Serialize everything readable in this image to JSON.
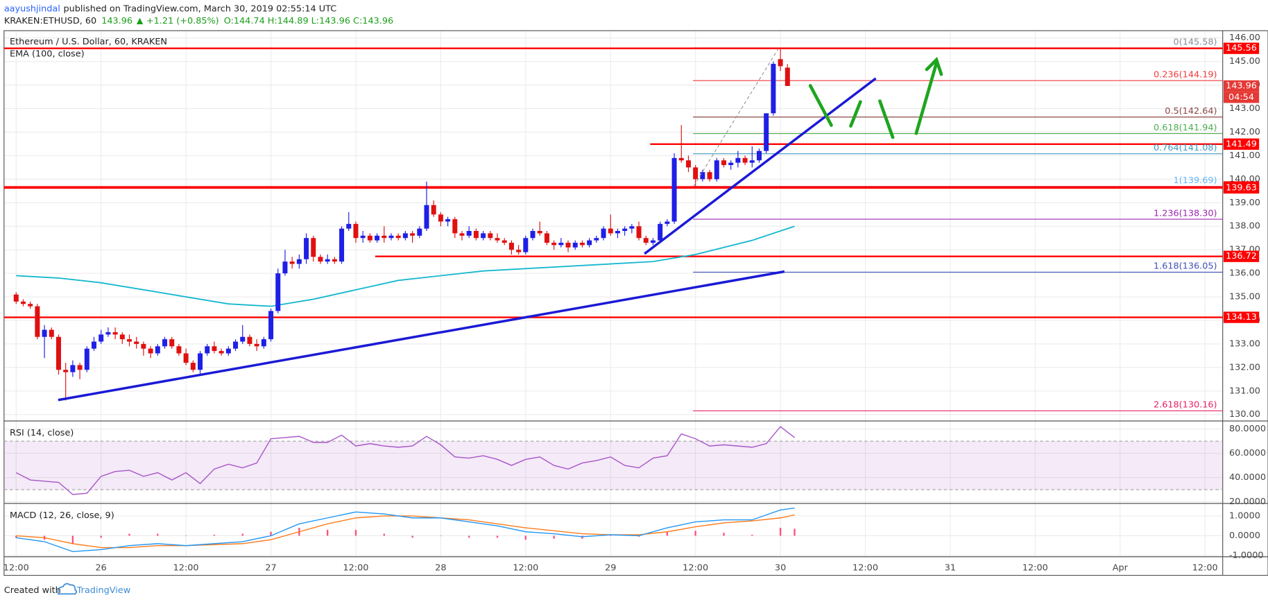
{
  "chart_data": {
    "type": "candlestick",
    "header": {
      "user": "aayushjindal",
      "published": "published on TradingView.com, March 30, 2019 02:55:14 UTC",
      "symbol": "KRAKEN:ETHUSD, 60",
      "last": 143.96,
      "change": "+1.21 (+0.85%)",
      "ohlc": "O:144.74 H:144.89 L:143.96 C:143.96"
    },
    "title": "Ethereum / U.S. Dollar, 60, KRAKEN",
    "ema_label": "EMA (100, close)",
    "xlim": [
      -1.71,
      170.5
    ],
    "xticks": [
      {
        "value": 0,
        "label": "12:00"
      },
      {
        "value": 12,
        "label": "26"
      },
      {
        "value": 24,
        "label": "12:00"
      },
      {
        "value": 36,
        "label": "27"
      },
      {
        "value": 48,
        "label": "12:00"
      },
      {
        "value": 60,
        "label": "28"
      },
      {
        "value": 72,
        "label": "12:00"
      },
      {
        "value": 84,
        "label": "29"
      },
      {
        "value": 96,
        "label": "12:00"
      },
      {
        "value": 108,
        "label": "30"
      },
      {
        "value": 120,
        "label": "12:00"
      },
      {
        "value": 132,
        "label": "31"
      },
      {
        "value": 144,
        "label": "12:00"
      },
      {
        "value": 156,
        "label": "Apr"
      },
      {
        "value": 168,
        "label": "12:00"
      }
    ],
    "ylim": [
      129.76,
      146.24
    ],
    "yticks": [
      {
        "value": 130,
        "label": "130.00"
      },
      {
        "value": 131,
        "label": "131.00"
      },
      {
        "value": 132,
        "label": "132.00"
      },
      {
        "value": 133,
        "label": "133.00"
      },
      {
        "value": 134,
        "label": "134.00"
      },
      {
        "value": 135,
        "label": "135.00"
      },
      {
        "value": 136,
        "label": "136.00"
      },
      {
        "value": 137,
        "label": "137.00"
      },
      {
        "value": 138,
        "label": "138.00"
      },
      {
        "value": 139,
        "label": "139.00"
      },
      {
        "value": 140,
        "label": "140.00"
      },
      {
        "value": 141,
        "label": "141.00"
      },
      {
        "value": 142,
        "label": "142.00"
      },
      {
        "value": 143,
        "label": "143.00"
      },
      {
        "value": 144,
        "label": "144.00"
      },
      {
        "value": 145,
        "label": "145.00"
      },
      {
        "value": 146,
        "label": "146.00"
      }
    ],
    "grid": true,
    "up_color": "#1f1fe6",
    "down_color": "#e01010",
    "candles": {
      "x": [
        0,
        1,
        2,
        3,
        4,
        5,
        6,
        7,
        8,
        9,
        10,
        11,
        12,
        13,
        14,
        15,
        16,
        17,
        18,
        19,
        20,
        21,
        22,
        23,
        24,
        25,
        26,
        27,
        28,
        29,
        30,
        31,
        32,
        33,
        34,
        35,
        36,
        37,
        38,
        39,
        40,
        41,
        42,
        43,
        44,
        45,
        46,
        47,
        48,
        49,
        50,
        51,
        52,
        53,
        54,
        55,
        56,
        57,
        58,
        59,
        60,
        61,
        62,
        63,
        64,
        65,
        66,
        67,
        68,
        69,
        70,
        71,
        72,
        73,
        74,
        75,
        76,
        77,
        78,
        79,
        80,
        81,
        82,
        83,
        84,
        85,
        86,
        87,
        88,
        89,
        90,
        91,
        92,
        93,
        94,
        95,
        96,
        97,
        98,
        99,
        100,
        101,
        102,
        103,
        104,
        105,
        106,
        107,
        108,
        109
      ],
      "ohlc": [
        [
          135.1,
          135.2,
          134.7,
          134.8
        ],
        [
          134.8,
          134.9,
          134.6,
          134.7
        ],
        [
          134.7,
          134.8,
          134.5,
          134.6
        ],
        [
          134.6,
          134.7,
          133.2,
          133.3
        ],
        [
          133.3,
          133.8,
          132.4,
          133.6
        ],
        [
          133.6,
          133.7,
          133.2,
          133.3
        ],
        [
          133.3,
          133.4,
          131.7,
          131.9
        ],
        [
          131.9,
          132.2,
          130.6,
          131.8
        ],
        [
          131.8,
          132.3,
          131.6,
          132.1
        ],
        [
          132.1,
          132.2,
          131.5,
          131.9
        ],
        [
          131.9,
          132.9,
          131.8,
          132.8
        ],
        [
          132.8,
          133.3,
          132.7,
          133.1
        ],
        [
          133.1,
          133.6,
          133.0,
          133.4
        ],
        [
          133.4,
          133.7,
          133.3,
          133.5
        ],
        [
          133.5,
          133.7,
          133.2,
          133.4
        ],
        [
          133.4,
          133.5,
          133.0,
          133.2
        ],
        [
          133.2,
          133.4,
          132.9,
          133.1
        ],
        [
          133.1,
          133.3,
          132.8,
          133.0
        ],
        [
          133.0,
          133.1,
          132.5,
          132.8
        ],
        [
          132.8,
          132.9,
          132.4,
          132.6
        ],
        [
          132.6,
          133.0,
          132.5,
          132.9
        ],
        [
          132.9,
          133.3,
          132.8,
          133.2
        ],
        [
          133.2,
          133.3,
          132.8,
          132.9
        ],
        [
          132.9,
          133.0,
          132.5,
          132.6
        ],
        [
          132.6,
          132.8,
          132.1,
          132.2
        ],
        [
          132.2,
          132.3,
          131.8,
          131.9
        ],
        [
          131.9,
          132.7,
          131.7,
          132.6
        ],
        [
          132.6,
          133.0,
          132.5,
          132.9
        ],
        [
          132.9,
          133.1,
          132.6,
          132.7
        ],
        [
          132.7,
          132.8,
          132.5,
          132.6
        ],
        [
          132.6,
          132.9,
          132.5,
          132.8
        ],
        [
          132.8,
          133.2,
          132.7,
          133.1
        ],
        [
          133.1,
          133.8,
          133.0,
          133.3
        ],
        [
          133.3,
          133.4,
          132.9,
          133.0
        ],
        [
          133.0,
          133.2,
          132.7,
          132.9
        ],
        [
          132.9,
          133.3,
          132.8,
          133.2
        ],
        [
          133.2,
          134.5,
          133.1,
          134.4
        ],
        [
          134.4,
          136.2,
          134.3,
          136.0
        ],
        [
          136.0,
          137.0,
          135.9,
          136.5
        ],
        [
          136.5,
          136.7,
          136.2,
          136.4
        ],
        [
          136.4,
          136.8,
          136.2,
          136.6
        ],
        [
          136.6,
          137.7,
          136.4,
          137.5
        ],
        [
          137.5,
          137.6,
          136.5,
          136.7
        ],
        [
          136.7,
          136.8,
          136.4,
          136.5
        ],
        [
          136.5,
          136.8,
          136.4,
          136.6
        ],
        [
          136.6,
          136.7,
          136.4,
          136.5
        ],
        [
          136.5,
          138.0,
          136.4,
          137.9
        ],
        [
          137.9,
          138.6,
          137.8,
          138.1
        ],
        [
          138.1,
          138.2,
          137.3,
          137.5
        ],
        [
          137.5,
          137.8,
          137.3,
          137.6
        ],
        [
          137.6,
          137.7,
          137.3,
          137.4
        ],
        [
          137.4,
          137.7,
          137.3,
          137.6
        ],
        [
          137.6,
          138.0,
          137.3,
          137.5
        ],
        [
          137.5,
          137.7,
          137.4,
          137.6
        ],
        [
          137.6,
          137.7,
          137.4,
          137.5
        ],
        [
          137.5,
          137.8,
          137.4,
          137.7
        ],
        [
          137.7,
          137.8,
          137.3,
          137.6
        ],
        [
          137.6,
          138.0,
          137.5,
          137.9
        ],
        [
          137.9,
          139.9,
          137.8,
          138.9
        ],
        [
          138.9,
          139.1,
          138.4,
          138.5
        ],
        [
          138.5,
          138.6,
          138.0,
          138.2
        ],
        [
          138.2,
          138.4,
          138.0,
          138.3
        ],
        [
          138.3,
          138.4,
          137.5,
          137.7
        ],
        [
          137.7,
          137.8,
          137.4,
          137.6
        ],
        [
          137.6,
          138.0,
          137.5,
          137.8
        ],
        [
          137.8,
          137.9,
          137.4,
          137.5
        ],
        [
          137.5,
          137.8,
          137.4,
          137.7
        ],
        [
          137.7,
          137.8,
          137.4,
          137.5
        ],
        [
          137.5,
          137.7,
          137.3,
          137.4
        ],
        [
          137.4,
          137.5,
          137.2,
          137.3
        ],
        [
          137.3,
          137.4,
          136.8,
          137.0
        ],
        [
          137.0,
          137.2,
          136.8,
          136.9
        ],
        [
          136.9,
          137.6,
          136.8,
          137.5
        ],
        [
          137.5,
          137.9,
          137.4,
          137.8
        ],
        [
          137.8,
          138.2,
          137.6,
          137.7
        ],
        [
          137.7,
          137.8,
          137.2,
          137.3
        ],
        [
          137.3,
          137.4,
          137.0,
          137.2
        ],
        [
          137.2,
          137.5,
          137.1,
          137.3
        ],
        [
          137.3,
          137.4,
          136.9,
          137.1
        ],
        [
          137.1,
          137.4,
          137.0,
          137.3
        ],
        [
          137.3,
          137.4,
          137.1,
          137.2
        ],
        [
          137.2,
          137.5,
          137.1,
          137.4
        ],
        [
          137.4,
          137.6,
          137.3,
          137.5
        ],
        [
          137.5,
          138.0,
          137.4,
          137.9
        ],
        [
          137.9,
          138.5,
          137.6,
          137.7
        ],
        [
          137.7,
          137.9,
          137.5,
          137.8
        ],
        [
          137.8,
          138.0,
          137.6,
          137.9
        ],
        [
          137.9,
          138.1,
          137.7,
          138.0
        ],
        [
          138.0,
          138.2,
          137.4,
          137.5
        ],
        [
          137.5,
          137.6,
          137.2,
          137.3
        ],
        [
          137.3,
          137.5,
          137.2,
          137.4
        ],
        [
          137.4,
          138.2,
          137.3,
          138.1
        ],
        [
          138.1,
          138.3,
          138.0,
          138.2
        ],
        [
          138.2,
          141.1,
          138.1,
          140.9
        ],
        [
          140.9,
          142.3,
          140.7,
          140.8
        ],
        [
          140.8,
          141.0,
          140.3,
          140.5
        ],
        [
          140.5,
          140.6,
          139.7,
          140.0
        ],
        [
          140.0,
          140.4,
          139.9,
          140.3
        ],
        [
          140.3,
          140.4,
          139.9,
          140.0
        ],
        [
          140.0,
          140.9,
          139.9,
          140.8
        ],
        [
          140.8,
          140.9,
          140.5,
          140.6
        ],
        [
          140.6,
          140.8,
          140.4,
          140.7
        ],
        [
          140.7,
          141.2,
          140.5,
          140.9
        ],
        [
          140.9,
          141.0,
          140.6,
          140.7
        ],
        [
          140.7,
          141.4,
          140.5,
          140.8
        ],
        [
          140.8,
          141.3,
          140.7,
          141.2
        ],
        [
          141.2,
          142.8,
          141.1,
          142.8
        ],
        [
          142.8,
          145.0,
          142.7,
          144.9
        ],
        [
          145.1,
          145.58,
          144.6,
          144.8
        ],
        [
          144.74,
          144.89,
          143.96,
          143.96
        ]
      ]
    },
    "ema": {
      "color": "#17b8cf",
      "x": [
        0,
        6,
        12,
        18,
        24,
        30,
        36,
        42,
        48,
        54,
        60,
        66,
        72,
        78,
        84,
        90,
        96,
        100,
        104,
        108,
        110
      ],
      "values": [
        135.9,
        135.8,
        135.6,
        135.3,
        135.0,
        134.7,
        134.6,
        134.9,
        135.3,
        135.7,
        135.9,
        136.1,
        136.2,
        136.3,
        136.4,
        136.5,
        136.8,
        137.1,
        137.4,
        137.8,
        138.0
      ]
    },
    "levels": [
      145.56,
      141.49,
      139.67,
      139.63,
      136.72,
      134.13
    ],
    "level_color": "#ff0000",
    "current_price": 143.96,
    "countdown": "04:54",
    "fib": [
      {
        "label": "0(145.58)",
        "value": 145.58,
        "color": "#8a8d96"
      },
      {
        "label": "0.236(144.19)",
        "value": 144.19,
        "color": "#f23a3a"
      },
      {
        "label": "0.5(142.64)",
        "value": 142.64,
        "color": "#8c4848"
      },
      {
        "label": "0.618(141.94)",
        "value": 141.94,
        "color": "#4caf50"
      },
      {
        "label": "0.764(141.08)",
        "value": 141.08,
        "color": "#3f9bbf"
      },
      {
        "label": "1(139.69)",
        "value": 139.69,
        "color": "#64b5f6"
      },
      {
        "label": "1.236(138.30)",
        "value": 138.3,
        "color": "#9c27b0"
      },
      {
        "label": "1.618(136.05)",
        "value": 136.05,
        "color": "#3f51b5"
      },
      {
        "label": "2.618(130.16)",
        "value": 130.16,
        "color": "#e91e63"
      }
    ],
    "rsi": {
      "title": "RSI (14, close)",
      "color": "#a855c8",
      "ylim": [
        19.3,
        86
      ],
      "band": [
        30,
        70
      ],
      "yticks": [
        {
          "value": 20,
          "label": "20.0000"
        },
        {
          "value": 40,
          "label": "40.0000"
        },
        {
          "value": 60,
          "label": "60.0000"
        },
        {
          "value": 80,
          "label": "80.0000"
        }
      ],
      "x": [
        0,
        2,
        4,
        6,
        8,
        10,
        12,
        14,
        16,
        18,
        20,
        22,
        24,
        26,
        28,
        30,
        32,
        34,
        36,
        38,
        40,
        42,
        44,
        46,
        48,
        50,
        52,
        54,
        56,
        58,
        60,
        62,
        64,
        66,
        68,
        70,
        72,
        74,
        76,
        78,
        80,
        82,
        84,
        86,
        88,
        90,
        92,
        94,
        96,
        98,
        100,
        102,
        104,
        106,
        108,
        110
      ],
      "values": [
        44,
        38,
        37,
        36,
        26,
        27,
        41,
        45,
        46,
        41,
        44,
        38,
        44,
        35,
        47,
        51,
        48,
        52,
        72,
        73,
        74,
        69,
        69,
        75,
        66,
        68,
        66,
        65,
        66,
        74,
        67,
        57,
        56,
        58,
        55,
        50,
        55,
        57,
        50,
        47,
        52,
        54,
        57,
        50,
        48,
        56,
        58,
        76,
        72,
        66,
        67,
        66,
        65,
        68,
        82,
        73
      ]
    },
    "macd": {
      "title": "MACD (12, 26, close, 9)",
      "ylim": [
        -1.02,
        1.55
      ],
      "yticks": [
        {
          "value": -1,
          "label": "-1.0000"
        },
        {
          "value": 0,
          "label": "0.0000"
        },
        {
          "value": 1,
          "label": "1.0000"
        }
      ],
      "macd_color": "#2196f3",
      "signal_color": "#ff7a1a",
      "histogram_color": "#ff4f7b",
      "x": [
        0,
        4,
        8,
        12,
        16,
        20,
        24,
        28,
        32,
        36,
        40,
        44,
        48,
        52,
        56,
        60,
        64,
        68,
        72,
        76,
        80,
        84,
        88,
        92,
        96,
        100,
        104,
        108,
        110
      ],
      "macd": [
        -0.1,
        -0.3,
        -0.8,
        -0.7,
        -0.5,
        -0.4,
        -0.5,
        -0.4,
        -0.3,
        0.0,
        0.6,
        0.9,
        1.2,
        1.1,
        0.9,
        0.9,
        0.7,
        0.5,
        0.2,
        0.1,
        -0.05,
        0.05,
        0.0,
        0.4,
        0.7,
        0.8,
        0.8,
        1.3,
        1.4
      ],
      "signal": [
        0.0,
        -0.1,
        -0.4,
        -0.6,
        -0.6,
        -0.5,
        -0.5,
        -0.45,
        -0.4,
        -0.2,
        0.2,
        0.6,
        0.9,
        1.0,
        1.0,
        0.9,
        0.8,
        0.6,
        0.4,
        0.25,
        0.1,
        0.05,
        0.05,
        0.2,
        0.45,
        0.65,
        0.75,
        0.9,
        1.05
      ],
      "histogram": [
        -0.1,
        -0.2,
        -0.4,
        -0.1,
        0.1,
        0.1,
        0.0,
        0.05,
        0.1,
        0.2,
        0.4,
        0.3,
        0.3,
        0.1,
        -0.1,
        0.0,
        -0.1,
        -0.1,
        -0.2,
        -0.15,
        -0.15,
        0.0,
        -0.05,
        0.2,
        0.25,
        0.15,
        0.05,
        0.4,
        0.35
      ]
    },
    "footer": {
      "created": "Created with",
      "brand": "TradingView"
    }
  }
}
